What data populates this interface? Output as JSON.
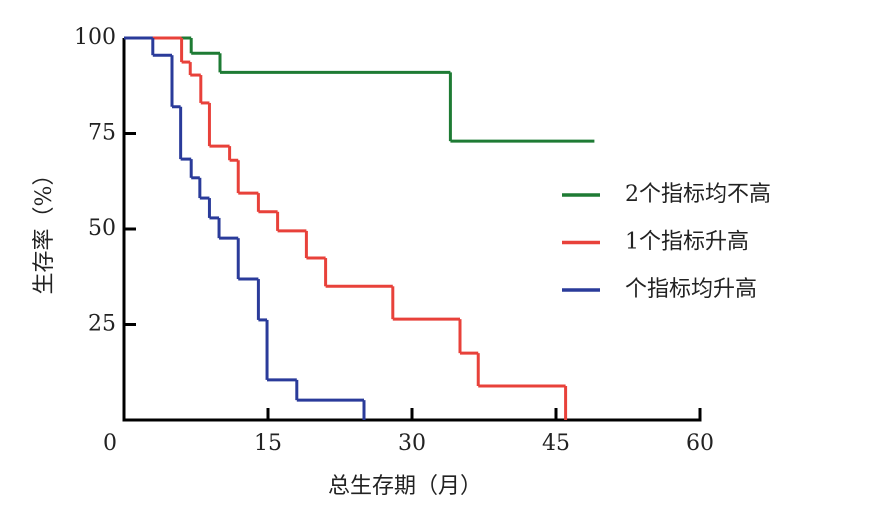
{
  "chart_data": {
    "type": "step",
    "x_label": "总生存期（月）",
    "y_label": "生存率（%）",
    "xlim": [
      0,
      60
    ],
    "xticks": [
      0,
      15,
      30,
      45,
      60
    ],
    "ylim": [
      0,
      100
    ],
    "yticks": [
      25,
      50,
      75,
      100
    ],
    "legend": "right",
    "series": [
      {
        "name": "2个指标均不高",
        "color": "#1e7b34",
        "x": [
          0,
          7,
          10,
          34,
          49
        ],
        "values": [
          100,
          96,
          91,
          73,
          73
        ]
      },
      {
        "name": "1个指标升高",
        "color": "#e8413a",
        "x": [
          0,
          6,
          6.9,
          8,
          8.9,
          11,
          11.9,
          14,
          16,
          19,
          21,
          28,
          35,
          36.9,
          46
        ],
        "values": [
          100,
          93.7,
          90.3,
          83,
          71.7,
          68,
          59.4,
          54.5,
          49.5,
          42.4,
          35,
          26.4,
          17.5,
          8.9,
          0
        ]
      },
      {
        "name": "个指标均升高",
        "color": "#2a3b9a",
        "x": [
          0,
          3,
          5,
          5.9,
          7,
          7.9,
          8.9,
          9.9,
          11.9,
          14,
          14.9,
          18,
          25
        ],
        "values": [
          100,
          95.5,
          82,
          68.3,
          63.4,
          58.1,
          52.9,
          47.6,
          36.9,
          26.2,
          10.5,
          5.2,
          0
        ]
      }
    ]
  }
}
